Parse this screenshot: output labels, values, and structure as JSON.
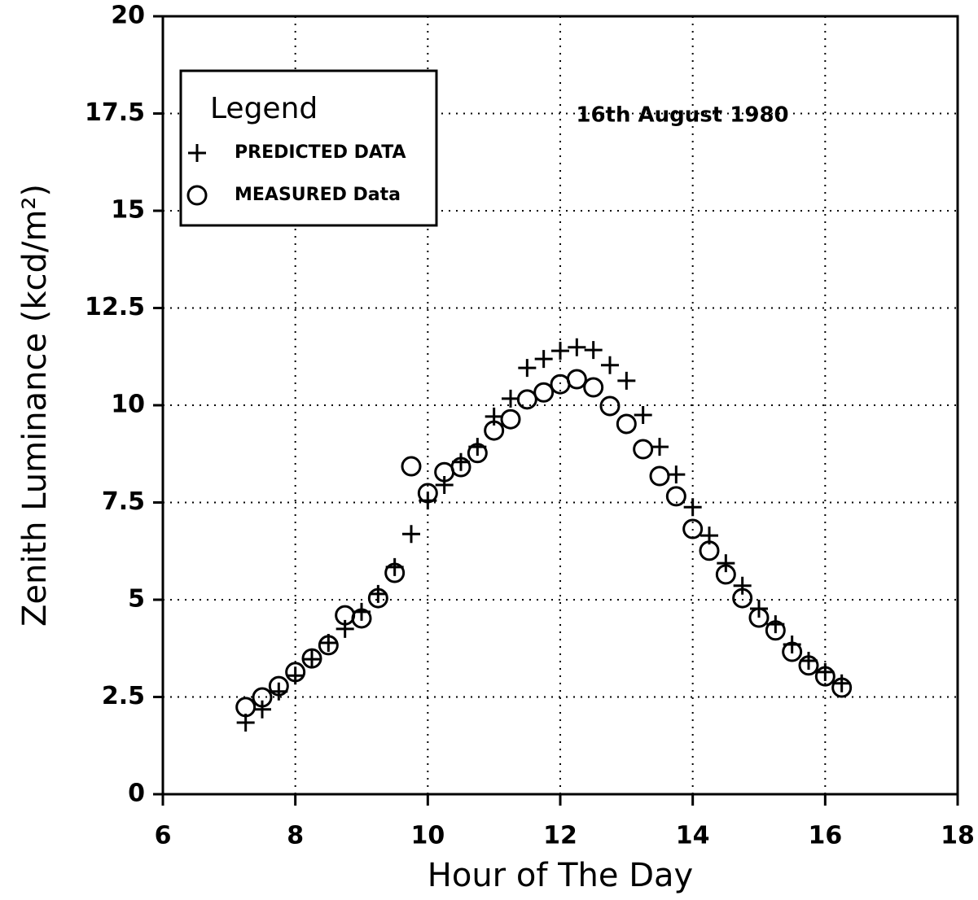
{
  "chart_data": {
    "type": "scatter",
    "annotation": "16th August 1980",
    "x_label": "Hour of The Day",
    "y_label": "Zenith Luminance (kcd/m²)",
    "legend_title": "Legend",
    "legend": "top-left",
    "grid": true,
    "xlim": [
      6,
      18
    ],
    "xticks": [
      6,
      8,
      10,
      12,
      14,
      16,
      18
    ],
    "ylim": [
      0,
      20
    ],
    "yticks": [
      0,
      2.5,
      5,
      7.5,
      10,
      12.5,
      15,
      17.5,
      20
    ],
    "x": [
      7.25,
      7.5,
      7.75,
      8,
      8.25,
      8.5,
      8.75,
      9,
      9.25,
      9.5,
      9.75,
      10,
      10.25,
      10.5,
      10.75,
      11,
      11.25,
      11.5,
      11.75,
      12,
      12.25,
      12.5,
      12.75,
      13,
      13.25,
      13.5,
      13.75,
      14,
      14.25,
      14.5,
      14.75,
      15,
      15.25,
      15.5,
      15.75,
      16,
      16.25
    ],
    "series": [
      {
        "name": "PREDICTED DATA",
        "marker": "plus",
        "color": "#000000",
        "values": [
          1.84,
          2.18,
          2.64,
          3.05,
          3.47,
          3.89,
          4.25,
          4.69,
          5.15,
          5.84,
          6.69,
          7.55,
          7.95,
          8.54,
          8.93,
          9.71,
          10.17,
          10.96,
          11.19,
          11.4,
          11.49,
          11.42,
          11.03,
          10.63,
          9.75,
          8.93,
          8.22,
          7.38,
          6.65,
          5.94,
          5.36,
          4.77,
          4.37,
          3.85,
          3.43,
          3.14,
          2.85
        ]
      },
      {
        "name": "MEASURED Data",
        "marker": "circle",
        "color": "#000000",
        "values": [
          2.24,
          2.49,
          2.78,
          3.14,
          3.49,
          3.83,
          4.6,
          4.52,
          5.04,
          5.69,
          8.43,
          7.74,
          8.28,
          8.41,
          8.77,
          9.35,
          9.64,
          10.15,
          10.33,
          10.54,
          10.67,
          10.46,
          9.98,
          9.52,
          8.87,
          8.18,
          7.66,
          6.82,
          6.26,
          5.65,
          5.04,
          4.54,
          4.21,
          3.66,
          3.31,
          3.03,
          2.74
        ]
      }
    ]
  }
}
